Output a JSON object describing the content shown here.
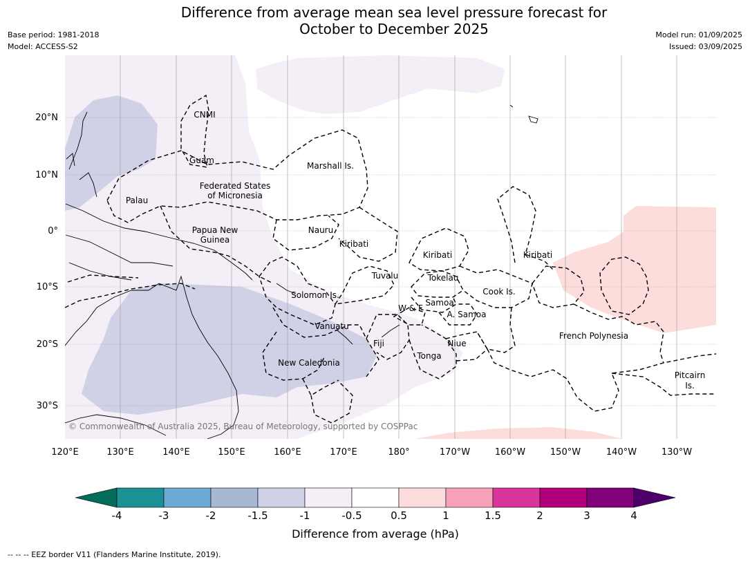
{
  "title_line1": "Difference from average mean sea level pressure forecast for",
  "title_line2": "October to December 2025",
  "base_period": "Base period: 1981-2018",
  "model": "Model: ACCESS-S2",
  "model_run": "Model run: 01/09/2025",
  "issued": "Issued: 03/09/2025",
  "copyright": "© Commonwealth of Australia 2025, Bureau of Meteorology, supported by COSPPac",
  "footer": "--  --  -- EEZ border V11 (Flanders Marine Institute, 2019).",
  "axes": {
    "lon_labels": [
      "120°E",
      "130°E",
      "140°E",
      "150°E",
      "160°E",
      "170°E",
      "180°",
      "170°W",
      "160°W",
      "150°W",
      "140°W",
      "130°W"
    ],
    "lat_labels": [
      "20°N",
      "10°N",
      "0°",
      "10°S",
      "20°S",
      "30°S"
    ]
  },
  "regions": {
    "cnmi": "CNMI",
    "guam": "Guam",
    "marshall": "Marshall Is.",
    "fsm1": "Federated States",
    "fsm2": "of Micronesia",
    "palau": "Palau",
    "png1": "Papua New",
    "png2": "Guinea",
    "nauru": "Nauru",
    "kiribati_w": "Kiribati",
    "kiribati_c": "Kiribati",
    "kiribati_e": "Kiribati",
    "tuvalu": "Tuvalu",
    "tokelau": "Tokelau",
    "solomon": "Solomon Is.",
    "cook": "Cook Is.",
    "samoa": "Samoa",
    "wf": "W & F",
    "asamoa": "A. Samoa",
    "vanuatu": "Vanuatu",
    "fiji": "Fiji",
    "niue": "Niue",
    "frenchpoly": "French Polynesia",
    "tonga": "Tonga",
    "newcal": "New Caledonia",
    "pitcairn1": "Pitcairn",
    "pitcairn2": "Is."
  },
  "colorbar": {
    "title": "Difference from average (hPa)",
    "ticks": [
      "-4",
      "-3",
      "-2",
      "-1.5",
      "-1",
      "-0.5",
      "0.5",
      "1",
      "1.5",
      "2",
      "3",
      "4"
    ],
    "colors": [
      "#006e5a",
      "#1b9196",
      "#6aaad3",
      "#a8b7d4",
      "#d0d0e6",
      "#f4eef6",
      "#ffffff",
      "#fddcdc",
      "#f8a0b7",
      "#d9359b",
      "#b0007a",
      "#81007c",
      "#4b006a"
    ]
  }
}
